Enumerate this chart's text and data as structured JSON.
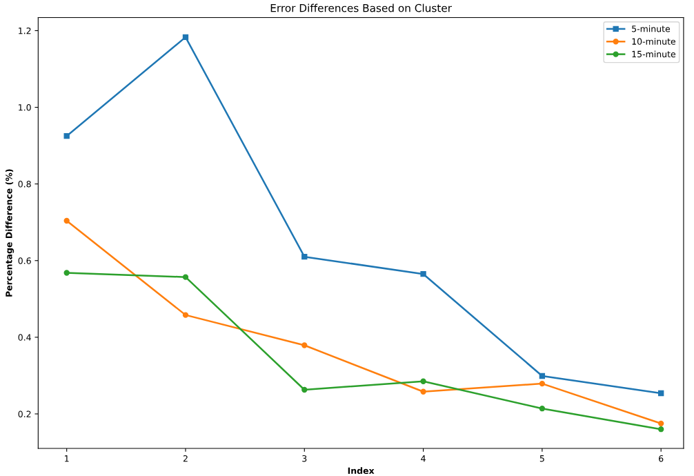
{
  "chart_data": {
    "type": "line",
    "title": "Error Differences Based on Cluster",
    "xlabel": "Index",
    "ylabel": "Percentage Difference (%)",
    "x": [
      1,
      2,
      3,
      4,
      5,
      6
    ],
    "series": [
      {
        "name": "5-minute",
        "color": "#1f77b4",
        "marker": "square",
        "values": [
          0.925,
          1.183,
          0.61,
          0.565,
          0.299,
          0.254
        ]
      },
      {
        "name": "10-minute",
        "color": "#ff7f0e",
        "marker": "circle",
        "values": [
          0.704,
          0.458,
          0.379,
          0.258,
          0.279,
          0.175
        ]
      },
      {
        "name": "15-minute",
        "color": "#2ca02c",
        "marker": "circle",
        "values": [
          0.568,
          0.557,
          0.263,
          0.285,
          0.214,
          0.16
        ]
      }
    ],
    "xlim": [
      0.76,
      6.19
    ],
    "ylim": [
      0.11,
      1.234
    ],
    "xticks": [
      1,
      2,
      3,
      4,
      5,
      6
    ],
    "yticks": [
      0.2,
      0.4,
      0.6,
      0.8,
      {
        "value": 1,
        "label": "1.0"
      },
      1.2
    ],
    "legend": "top right",
    "grid": false
  }
}
